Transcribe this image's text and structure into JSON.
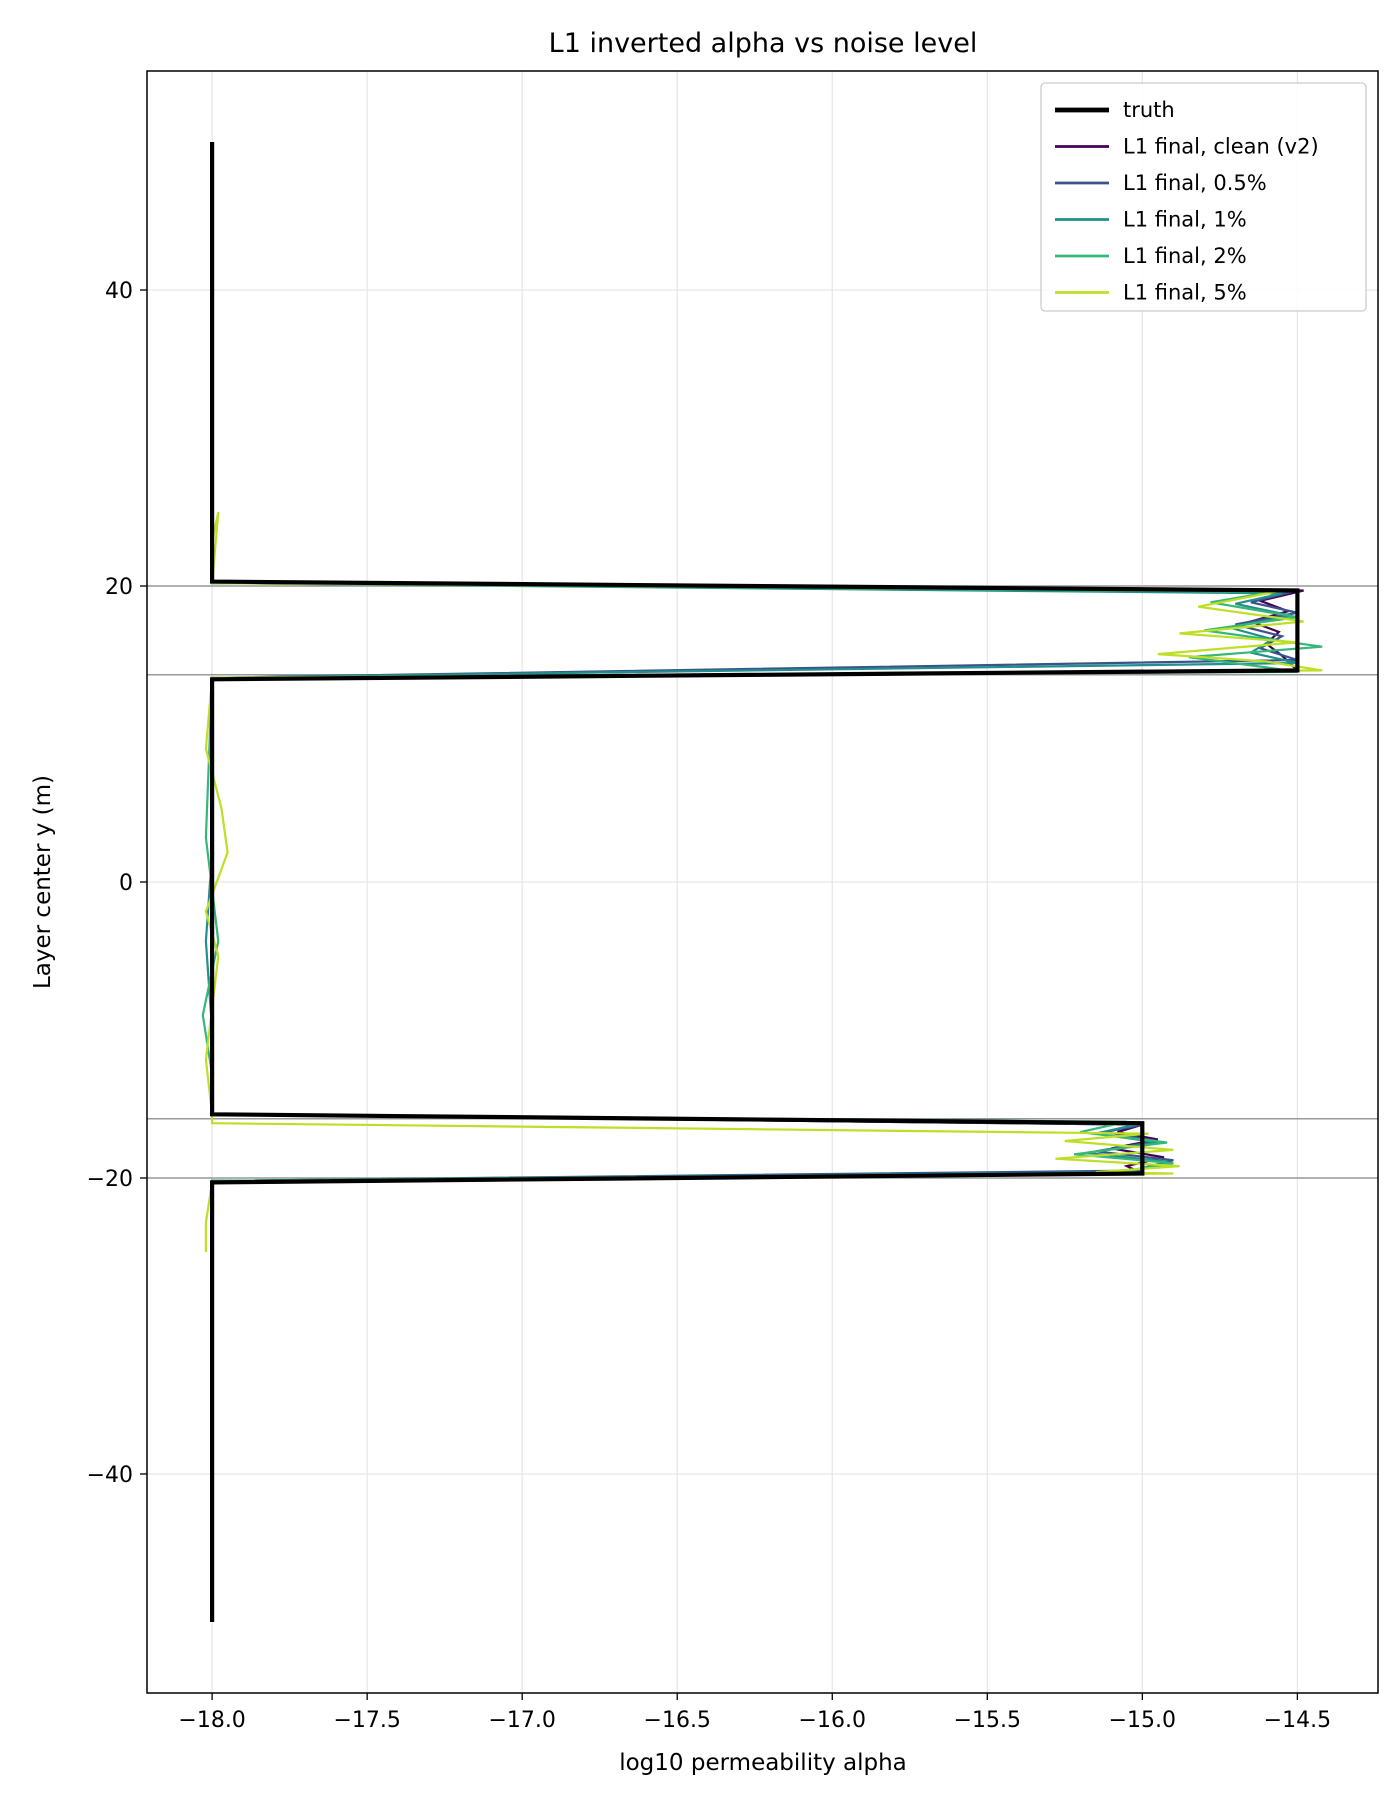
{
  "chart_data": {
    "type": "line",
    "title": "L1 inverted alpha vs noise level",
    "xlabel": "log10 permeability alpha",
    "ylabel": "Layer center y (m)",
    "xlim": [
      -18.21,
      -14.24
    ],
    "ylim": [
      -54.8,
      54.8
    ],
    "xticks": [
      -18.0,
      -17.5,
      -17.0,
      -16.5,
      -16.0,
      -15.5,
      -15.0,
      -14.5
    ],
    "xtick_labels": [
      "−18.0",
      "−17.5",
      "−17.0",
      "−16.5",
      "−16.0",
      "−15.5",
      "−15.0",
      "−14.5"
    ],
    "yticks": [
      -40,
      -20,
      0,
      20,
      40
    ],
    "ytick_labels": [
      "−40",
      "−20",
      "0",
      "20",
      "40"
    ],
    "grid": true,
    "hlines": [
      20.0,
      14.0,
      -16.0,
      -20.0
    ],
    "legend_position": "top-right",
    "series": [
      {
        "name": "truth",
        "color": "#000000",
        "width": 4.2,
        "x": [
          -18.0,
          -18.0,
          -14.5,
          -14.5,
          -18.0,
          -18.0,
          -15.0,
          -15.0,
          -18.0,
          -18.0
        ],
        "y": [
          50.0,
          20.3,
          19.7,
          14.3,
          13.7,
          -15.7,
          -16.3,
          -19.7,
          -20.3,
          -50.0
        ]
      },
      {
        "name": "L1 final, clean (v2)",
        "color": "#440154",
        "width": 2.2,
        "x": [
          -18.0,
          -18.0,
          -18.0,
          -18.0,
          -14.48,
          -14.62,
          -14.53,
          -14.65,
          -14.56,
          -14.6,
          -14.55,
          -14.5,
          -18.0,
          -18.0,
          -18.0,
          -18.0,
          -15.0,
          -15.08,
          -14.95,
          -15.1,
          -14.93,
          -15.05,
          -15.0,
          -18.0,
          -18.0
        ],
        "y": [
          49.0,
          30.0,
          22.0,
          20.2,
          19.7,
          19.0,
          18.3,
          17.6,
          16.9,
          16.1,
          15.3,
          14.3,
          13.8,
          5.0,
          -5.0,
          -15.7,
          -16.4,
          -16.9,
          -17.4,
          -18.0,
          -18.6,
          -19.2,
          -19.7,
          -20.2,
          -25.0
        ]
      },
      {
        "name": "L1 final, 0.5%",
        "color": "#3b528b",
        "width": 2.2,
        "x": [
          -18.0,
          -18.0,
          -18.0,
          -14.52,
          -14.65,
          -14.5,
          -14.7,
          -14.55,
          -14.62,
          -14.5,
          -18.0,
          -18.0,
          -18.0,
          -15.0,
          -15.12,
          -14.95,
          -15.15,
          -14.9,
          -15.02,
          -18.0,
          -18.0
        ],
        "y": [
          24.0,
          22.0,
          20.2,
          19.6,
          18.9,
          18.2,
          17.4,
          16.6,
          15.8,
          15.0,
          13.8,
          0.0,
          -15.7,
          -16.4,
          -16.9,
          -17.5,
          -18.2,
          -18.8,
          -19.5,
          -20.2,
          -24.0
        ]
      },
      {
        "name": "L1 final, 1%",
        "color": "#21908d",
        "width": 2.2,
        "x": [
          -18.0,
          -18.0,
          -14.55,
          -14.7,
          -14.52,
          -14.72,
          -14.58,
          -14.65,
          -14.5,
          -18.0,
          -18.0,
          -18.02,
          -18.0,
          -18.0,
          -15.0,
          -15.15,
          -14.95,
          -15.18,
          -14.92,
          -15.05,
          -18.0
        ],
        "y": [
          23.0,
          20.2,
          19.5,
          18.8,
          18.0,
          17.2,
          16.4,
          15.5,
          14.8,
          13.8,
          2.0,
          -4.0,
          -10.0,
          -15.7,
          -16.3,
          -17.0,
          -17.6,
          -18.3,
          -18.9,
          -19.6,
          -20.2
        ]
      },
      {
        "name": "L1 final, 2%",
        "color": "#35b779",
        "width": 2.2,
        "x": [
          -18.0,
          -18.0,
          -14.58,
          -14.78,
          -14.5,
          -14.8,
          -14.42,
          -14.85,
          -14.6,
          -14.5,
          -18.0,
          -18.02,
          -17.98,
          -18.03,
          -18.0,
          -18.0,
          -15.05,
          -15.2,
          -14.92,
          -15.22,
          -14.9,
          -15.1,
          -18.0
        ],
        "y": [
          24.0,
          20.2,
          19.6,
          18.9,
          17.9,
          17.0,
          15.9,
          15.2,
          14.5,
          14.2,
          13.8,
          3.0,
          -4.0,
          -9.0,
          -13.0,
          -15.7,
          -16.2,
          -16.9,
          -17.6,
          -18.4,
          -19.0,
          -19.7,
          -20.2
        ]
      },
      {
        "name": "L1 final, 5%",
        "color": "#bddf26",
        "width": 2.2,
        "x": [
          -18.0,
          -17.98,
          -18.0,
          -14.55,
          -14.82,
          -14.48,
          -14.88,
          -14.5,
          -14.95,
          -14.6,
          -14.42,
          -18.0,
          -18.02,
          -17.97,
          -17.95,
          -18.02,
          -17.98,
          -18.02,
          -18.0,
          -18.0,
          -14.98,
          -15.25,
          -14.9,
          -15.28,
          -14.88,
          -15.15,
          -14.9,
          -18.0,
          -18.02,
          -18.02
        ],
        "y": [
          23.0,
          25.0,
          20.2,
          19.7,
          18.6,
          17.6,
          16.8,
          16.2,
          15.4,
          14.9,
          14.3,
          13.8,
          9.0,
          5.0,
          2.0,
          -2.0,
          -5.0,
          -12.0,
          -15.7,
          -16.3,
          -17.0,
          -17.5,
          -18.1,
          -18.7,
          -19.2,
          -19.6,
          -19.7,
          -20.3,
          -23.0,
          -25.0
        ]
      }
    ]
  }
}
